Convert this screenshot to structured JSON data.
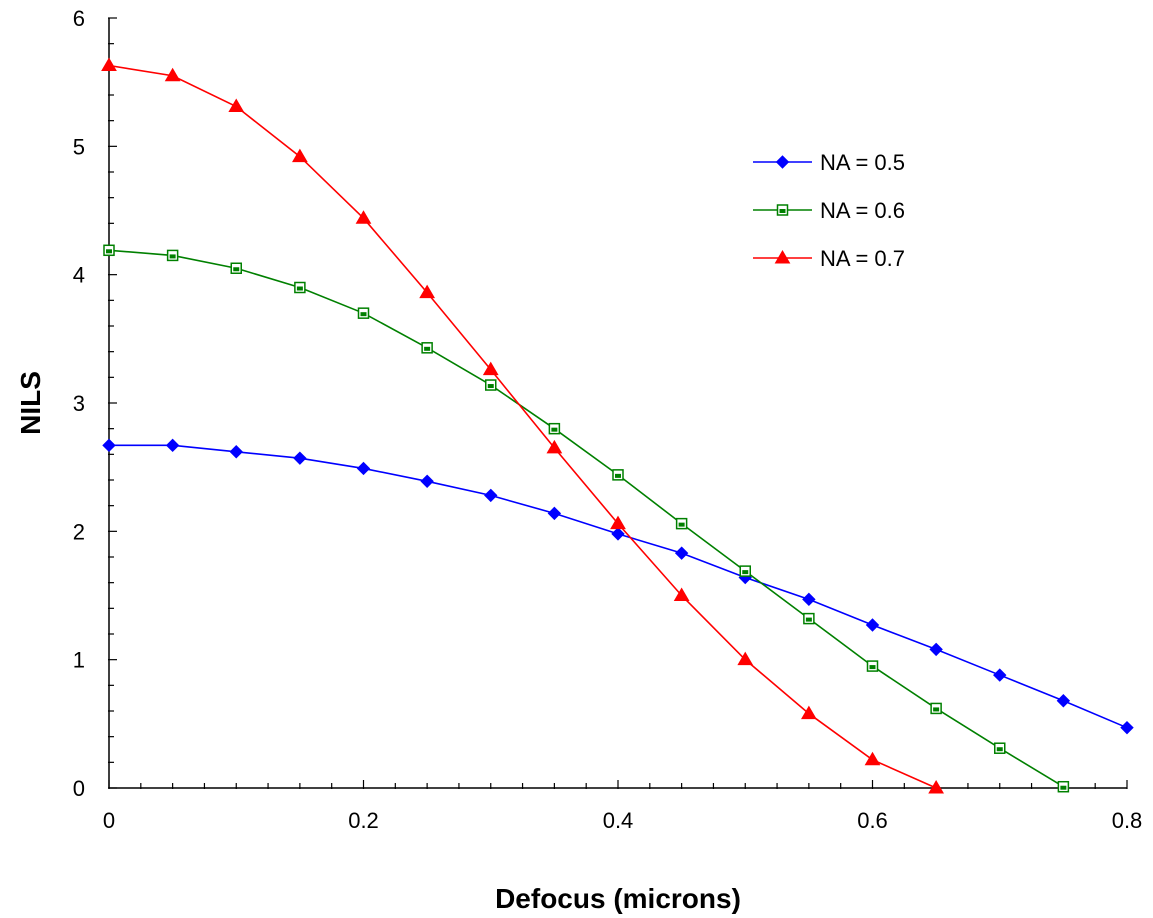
{
  "chart_data": {
    "type": "line",
    "title": "",
    "xlabel": "Defocus (microns)",
    "ylabel": "NILS",
    "xlim": [
      0,
      0.8
    ],
    "ylim": [
      0,
      6
    ],
    "x_ticks": [
      "0",
      "0.2",
      "0.4",
      "0.6",
      "0.8"
    ],
    "y_ticks": [
      "0",
      "1",
      "2",
      "3",
      "4",
      "5",
      "6"
    ],
    "grid": false,
    "legend_position": "top-right",
    "series": [
      {
        "name": "NA = 0.5",
        "color": "#0000ff",
        "marker": "diamond",
        "x": [
          0,
          0.05,
          0.1,
          0.15,
          0.2,
          0.25,
          0.3,
          0.35,
          0.4,
          0.45,
          0.5,
          0.55,
          0.6,
          0.65,
          0.7,
          0.75,
          0.8
        ],
        "values": [
          2.67,
          2.67,
          2.62,
          2.57,
          2.49,
          2.39,
          2.28,
          2.14,
          1.98,
          1.83,
          1.64,
          1.47,
          1.27,
          1.08,
          0.88,
          0.68,
          0.47
        ]
      },
      {
        "name": "NA = 0.6",
        "color": "#008000",
        "marker": "square",
        "x": [
          0,
          0.05,
          0.1,
          0.15,
          0.2,
          0.25,
          0.3,
          0.35,
          0.4,
          0.45,
          0.5,
          0.55,
          0.6,
          0.65,
          0.7,
          0.75
        ],
        "values": [
          4.19,
          4.15,
          4.05,
          3.9,
          3.7,
          3.43,
          3.14,
          2.8,
          2.44,
          2.06,
          1.69,
          1.32,
          0.95,
          0.62,
          0.31,
          0.01
        ]
      },
      {
        "name": "NA = 0.7",
        "color": "#ff0000",
        "marker": "triangle",
        "x": [
          0,
          0.05,
          0.1,
          0.15,
          0.2,
          0.25,
          0.3,
          0.35,
          0.4,
          0.45,
          0.5,
          0.55,
          0.6,
          0.65
        ],
        "values": [
          5.63,
          5.55,
          5.31,
          4.92,
          4.44,
          3.86,
          3.26,
          2.65,
          2.06,
          1.5,
          1.0,
          0.58,
          0.22,
          0.0
        ]
      }
    ]
  }
}
